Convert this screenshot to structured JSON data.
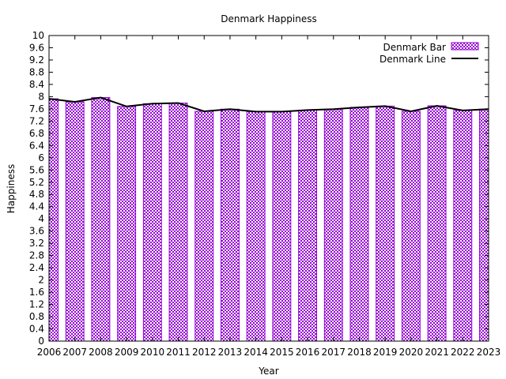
{
  "chart_data": {
    "type": "bar",
    "title": "Denmark Happiness",
    "xlabel": "Year",
    "ylabel": "Happiness",
    "x": [
      2006,
      2007,
      2008,
      2009,
      2010,
      2011,
      2012,
      2013,
      2014,
      2015,
      2016,
      2017,
      2018,
      2019,
      2020,
      2021,
      2022,
      2023
    ],
    "xlim": [
      2006,
      2023
    ],
    "ylim": [
      0,
      10
    ],
    "yticks": [
      "0",
      "0.4",
      "0.8",
      "1.2",
      "1.6",
      "2",
      "2.4",
      "2.8",
      "3.2",
      "3.6",
      "4",
      "4.4",
      "4.8",
      "5.2",
      "5.6",
      "6",
      "6.4",
      "6.8",
      "7.2",
      "7.6",
      "8",
      "8.4",
      "8.8",
      "9.2",
      "9.6",
      "10"
    ],
    "xticks": [
      "2006",
      "2007",
      "2008",
      "2009",
      "2010",
      "2011",
      "2012",
      "2013",
      "2014",
      "2015",
      "2016",
      "2017",
      "2018",
      "2019",
      "2020",
      "2021",
      "2022",
      "2023"
    ],
    "series": [
      {
        "name": "Denmark Bar",
        "kind": "bar",
        "color": "#9400d3",
        "values": [
          7.93,
          7.83,
          7.97,
          7.68,
          7.77,
          7.79,
          7.52,
          7.59,
          7.51,
          7.51,
          7.56,
          7.59,
          7.65,
          7.69,
          7.52,
          7.7,
          7.55,
          7.59
        ]
      },
      {
        "name": "Denmark Line",
        "kind": "line",
        "color": "#000000",
        "values": [
          7.93,
          7.83,
          7.97,
          7.68,
          7.77,
          7.79,
          7.52,
          7.59,
          7.51,
          7.51,
          7.56,
          7.59,
          7.65,
          7.69,
          7.52,
          7.7,
          7.55,
          7.59
        ]
      }
    ],
    "legend_position": "top-right",
    "grid": false
  }
}
